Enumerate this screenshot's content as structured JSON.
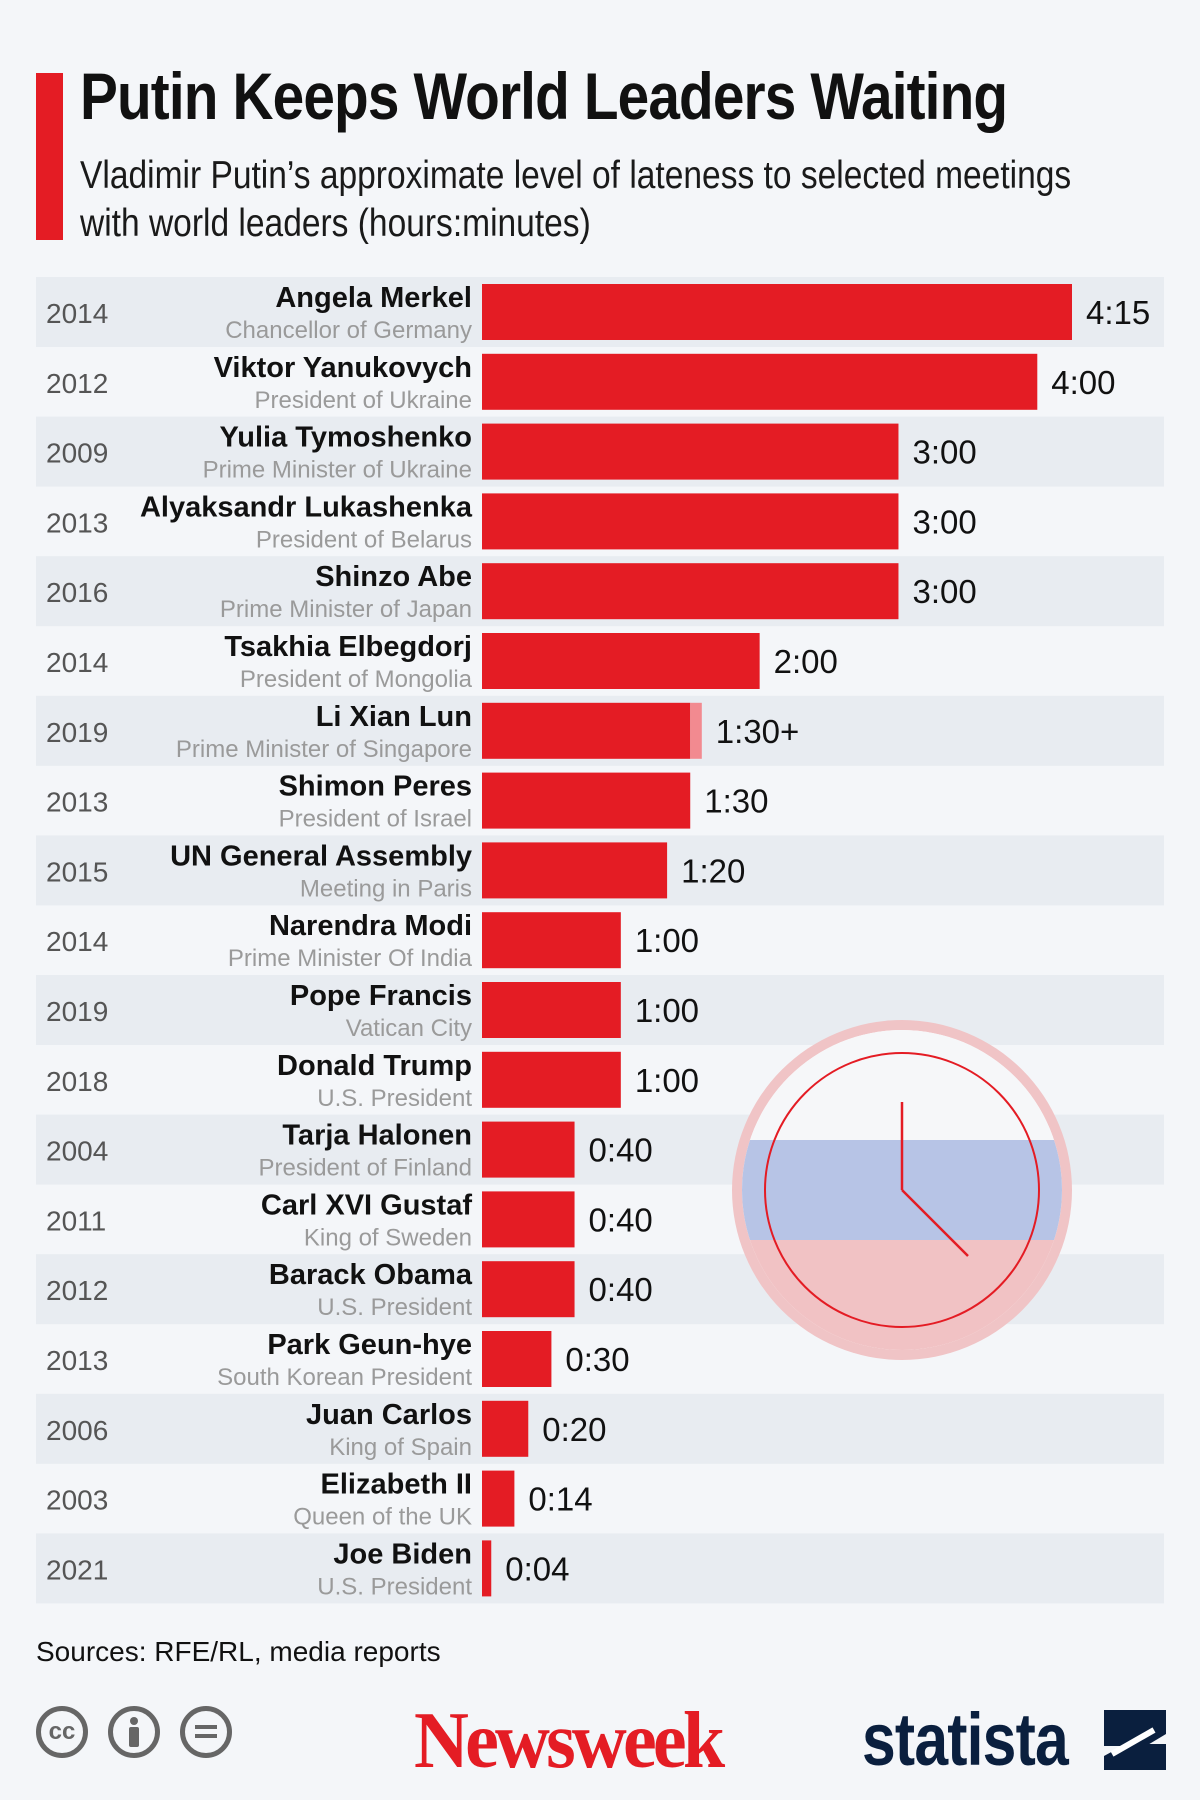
{
  "header": {
    "title": "Putin Keeps World Leaders Waiting",
    "subtitle": "Vladimir Putin’s approximate level of lateness to selected meetings with world leaders (hours:minutes)"
  },
  "chart_data": {
    "type": "bar",
    "orientation": "horizontal",
    "unit": "minutes",
    "xlim": [
      0,
      255
    ],
    "title": "Putin Keeps World Leaders Waiting",
    "rows": [
      {
        "year": "2014",
        "leader": "Angela Merkel",
        "role": "Chancellor of Germany",
        "minutes": 255,
        "label": "4:15"
      },
      {
        "year": "2012",
        "leader": "Viktor Yanukovych",
        "role": "President of Ukraine",
        "minutes": 240,
        "label": "4:00"
      },
      {
        "year": "2009",
        "leader": "Yulia Tymoshenko",
        "role": "Prime Minister of Ukraine",
        "minutes": 180,
        "label": "3:00"
      },
      {
        "year": "2013",
        "leader": "Alyaksandr Lukashenka",
        "role": "President of Belarus",
        "minutes": 180,
        "label": "3:00"
      },
      {
        "year": "2016",
        "leader": "Shinzo Abe",
        "role": "Prime Minister of Japan",
        "minutes": 180,
        "label": "3:00"
      },
      {
        "year": "2014",
        "leader": "Tsakhia Elbegdorj",
        "role": "President of Mongolia",
        "minutes": 120,
        "label": "2:00"
      },
      {
        "year": "2019",
        "leader": "Li Xian Lun",
        "role": "Prime Minister of Singapore",
        "minutes": 90,
        "extra_minutes": 5,
        "label": "1:30+"
      },
      {
        "year": "2013",
        "leader": "Shimon Peres",
        "role": "President of Israel",
        "minutes": 90,
        "label": "1:30"
      },
      {
        "year": "2015",
        "leader": "UN General Assembly",
        "role": "Meeting in Paris",
        "minutes": 80,
        "label": "1:20"
      },
      {
        "year": "2014",
        "leader": "Narendra Modi",
        "role": "Prime Minister Of India",
        "minutes": 60,
        "label": "1:00"
      },
      {
        "year": "2019",
        "leader": "Pope Francis",
        "role": "Vatican City",
        "minutes": 60,
        "label": "1:00"
      },
      {
        "year": "2018",
        "leader": "Donald Trump",
        "role": "U.S. President",
        "minutes": 60,
        "label": "1:00"
      },
      {
        "year": "2004",
        "leader": "Tarja Halonen",
        "role": "President of Finland",
        "minutes": 40,
        "label": "0:40"
      },
      {
        "year": "2011",
        "leader": "Carl XVI Gustaf",
        "role": "King of Sweden",
        "minutes": 40,
        "label": "0:40"
      },
      {
        "year": "2012",
        "leader": "Barack Obama",
        "role": "U.S. President",
        "minutes": 40,
        "label": "0:40"
      },
      {
        "year": "2013",
        "leader": "Park Geun-hye",
        "role": "South Korean President",
        "minutes": 30,
        "label": "0:30"
      },
      {
        "year": "2006",
        "leader": "Juan Carlos",
        "role": "King of Spain",
        "minutes": 20,
        "label": "0:20"
      },
      {
        "year": "2003",
        "leader": "Elizabeth II",
        "role": "Queen of the UK",
        "minutes": 14,
        "label": "0:14"
      },
      {
        "year": "2021",
        "leader": "Joe Biden",
        "role": "U.S. President",
        "minutes": 4,
        "label": "0:04"
      }
    ]
  },
  "colors": {
    "bar": "#e41c24",
    "bar_extra": "#f28a90",
    "stripe": "#e8ecf1",
    "background": "#f4f6f9",
    "title_accent": "#e41c24"
  },
  "icons": [
    "clock-icon",
    "cc-icon",
    "attribution-icon",
    "no-derivatives-icon",
    "statista-logo-icon"
  ],
  "footer": {
    "source": "Sources: RFE/RL, media reports",
    "cc_label": "cc",
    "newsweek": "Newsweek",
    "statista": "statista"
  }
}
